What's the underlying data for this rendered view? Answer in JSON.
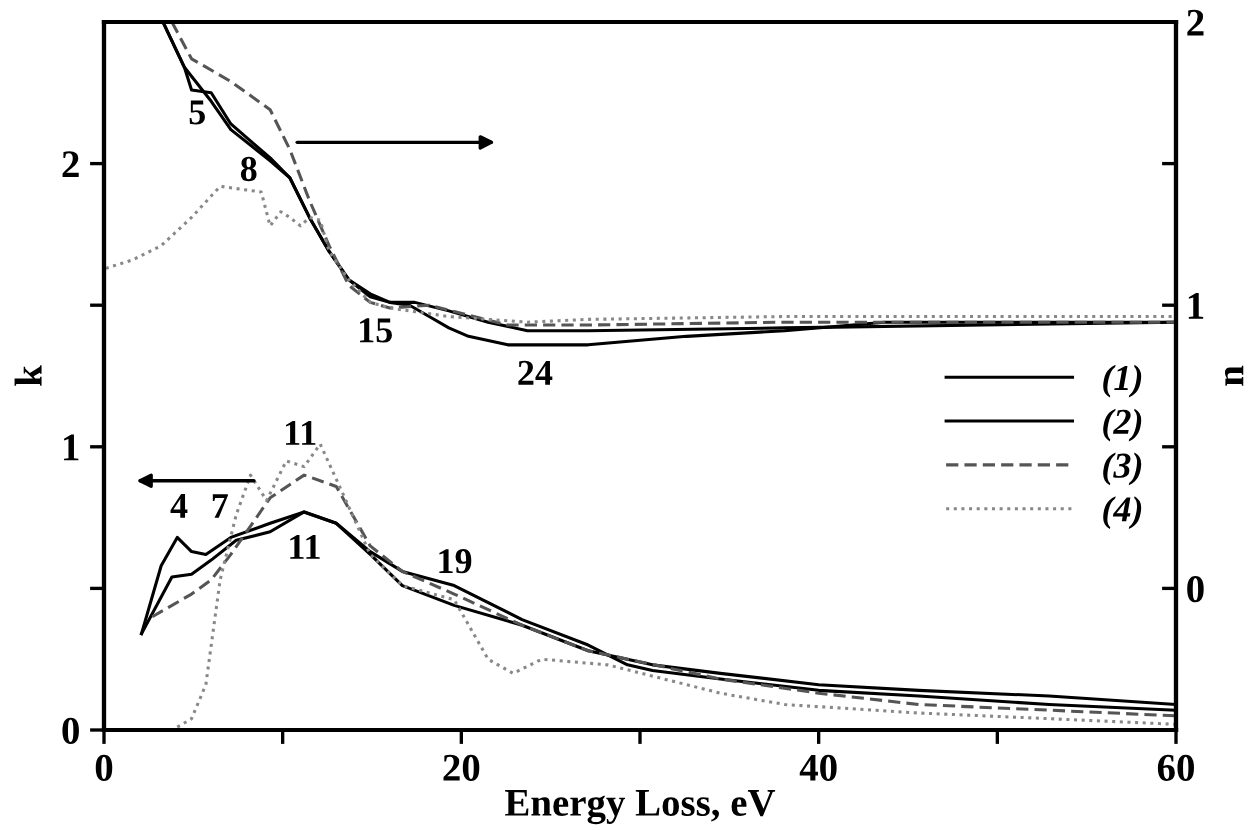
{
  "chart_data": {
    "type": "line",
    "xlabel": "Energy Loss, eV",
    "ylabel": "k",
    "y2label": "n",
    "xlim": [
      0,
      60
    ],
    "xticks": [
      0,
      {
        "value": 10,
        "label": null
      },
      20,
      {
        "value": 30,
        "label": null
      },
      40,
      {
        "value": 50,
        "label": null
      },
      60
    ],
    "ylim": [
      0,
      2.5
    ],
    "yticks": [
      0,
      {
        "value": 0.5,
        "label": null
      },
      1,
      {
        "value": 1.5,
        "label": null
      },
      2
    ],
    "y2lim": [
      -0.5,
      2
    ],
    "y2ticks": [
      {
        "value": -0.5,
        "label": null
      },
      0,
      {
        "value": 0.5,
        "label": null
      },
      1,
      {
        "value": 1.5,
        "label": null
      },
      2
    ],
    "legend": "right",
    "grid": false,
    "series": [
      {
        "name": "(1)",
        "color": "#000000",
        "line_style": "solid",
        "axis": "y",
        "x": [
          2.1,
          3.2,
          4.1,
          4.9,
          5.7,
          7.1,
          9.3,
          11.2,
          13.0,
          14.9,
          16.7,
          19.6,
          23.4,
          27.1,
          29.3,
          30.7,
          34.5,
          40.0,
          45.6,
          52.9,
          60
        ],
        "values": [
          0.34,
          0.58,
          0.68,
          0.63,
          0.62,
          0.68,
          0.73,
          0.77,
          0.73,
          0.63,
          0.56,
          0.51,
          0.39,
          0.3,
          0.23,
          0.21,
          0.18,
          0.14,
          0.12,
          0.09,
          0.07
        ]
      },
      {
        "name": "(2)",
        "color": "#000000",
        "line_style": "solid",
        "axis": "y",
        "x": [
          2.1,
          3.8,
          4.9,
          6.0,
          7.4,
          9.3,
          11.2,
          13.0,
          14.9,
          16.7,
          19.6,
          23.4,
          27.1,
          30.7,
          34.5,
          40.0,
          45.6,
          52.9,
          60
        ],
        "values": [
          0.34,
          0.54,
          0.55,
          0.6,
          0.67,
          0.7,
          0.77,
          0.73,
          0.62,
          0.51,
          0.44,
          0.37,
          0.28,
          0.23,
          0.2,
          0.16,
          0.14,
          0.12,
          0.09
        ]
      },
      {
        "name": "(3)",
        "color": "#555555",
        "line_style": "dashed",
        "axis": "y",
        "x": [
          2.7,
          4.9,
          6.0,
          7.1,
          9.3,
          11.2,
          13.0,
          14.9,
          16.7,
          19.6,
          23.4,
          27.1,
          34.5,
          40.0,
          45.6,
          52.9,
          60
        ],
        "values": [
          0.4,
          0.48,
          0.53,
          0.62,
          0.82,
          0.9,
          0.86,
          0.65,
          0.56,
          0.48,
          0.37,
          0.28,
          0.18,
          0.13,
          0.09,
          0.07,
          0.05
        ]
      },
      {
        "name": "(4)",
        "color": "#888888",
        "line_style": "dotted",
        "axis": "y",
        "x": [
          4.1,
          4.9,
          5.7,
          6.5,
          7.4,
          8.2,
          9.1,
          10.2,
          11.2,
          12.1,
          13.4,
          14.9,
          16.7,
          19.6,
          21.5,
          22.9,
          24.5,
          28.2,
          34.5,
          38.1,
          45.6,
          52.9,
          60
        ],
        "values": [
          0.01,
          0.04,
          0.16,
          0.53,
          0.76,
          0.9,
          0.81,
          0.95,
          0.93,
          1.01,
          0.83,
          0.62,
          0.51,
          0.46,
          0.25,
          0.2,
          0.25,
          0.23,
          0.13,
          0.09,
          0.06,
          0.04,
          0.02
        ]
      },
      {
        "color": "#000000",
        "line_style": "solid",
        "axis": "y2",
        "x": [
          3.3,
          4.5,
          4.9,
          6.0,
          7.1,
          9.3,
          10.4,
          11.5,
          12.6,
          13.7,
          14.9,
          16.0,
          17.1,
          18.2,
          19.3,
          20.4,
          22.6,
          27.1,
          32.6,
          38.1,
          43.7,
          49.2,
          60
        ],
        "values": [
          2.0,
          1.84,
          1.76,
          1.75,
          1.64,
          1.52,
          1.45,
          1.31,
          1.19,
          1.09,
          1.03,
          1.01,
          1.0,
          0.96,
          0.92,
          0.89,
          0.86,
          0.86,
          0.89,
          0.91,
          0.94,
          0.94,
          0.94
        ]
      },
      {
        "color": "#000000",
        "line_style": "solid",
        "axis": "y2",
        "x": [
          3.3,
          4.5,
          6.0,
          7.1,
          9.3,
          10.4,
          11.5,
          12.6,
          13.7,
          14.9,
          16.0,
          17.4,
          19.3,
          21.5,
          23.7,
          27.1,
          38.1,
          60
        ],
        "values": [
          2.0,
          1.84,
          1.72,
          1.62,
          1.51,
          1.45,
          1.31,
          1.19,
          1.09,
          1.04,
          1.01,
          1.01,
          0.98,
          0.94,
          0.91,
          0.91,
          0.92,
          0.94
        ]
      },
      {
        "color": "#555555",
        "line_style": "dashed",
        "axis": "y2",
        "x": [
          3.8,
          4.9,
          7.1,
          9.3,
          10.4,
          11.5,
          12.6,
          13.7,
          14.9,
          16.0,
          18.2,
          22.6,
          27.1,
          38.1,
          60
        ],
        "values": [
          2.0,
          1.87,
          1.79,
          1.69,
          1.55,
          1.37,
          1.21,
          1.07,
          1.01,
          0.99,
          1.0,
          0.93,
          0.93,
          0.94,
          0.94
        ]
      },
      {
        "color": "#888888",
        "line_style": "dotted",
        "axis": "y2",
        "x": [
          0.1,
          1.6,
          3.2,
          4.9,
          6.5,
          7.6,
          8.8,
          9.3,
          9.9,
          10.4,
          11.0,
          11.5,
          12.1,
          12.6,
          13.7,
          14.9,
          16.0,
          19.3,
          23.7,
          27.1,
          38.1,
          60
        ],
        "values": [
          1.13,
          1.16,
          1.21,
          1.31,
          1.42,
          1.41,
          1.4,
          1.28,
          1.33,
          1.31,
          1.28,
          1.31,
          1.3,
          1.19,
          1.09,
          1.01,
          0.99,
          0.96,
          0.94,
          0.95,
          0.96,
          0.96
        ]
      }
    ],
    "annotations": [
      "5",
      "8",
      "15",
      "24",
      "4",
      "7",
      "11",
      "11",
      "19"
    ]
  }
}
